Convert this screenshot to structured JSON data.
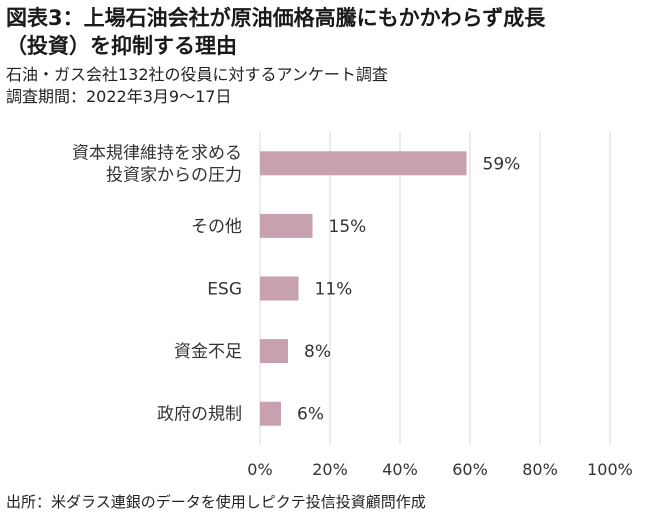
{
  "header": {
    "title_line1": "図表3：上場石油会社が原油価格高騰にもかかわらず成長",
    "title_line2": "（投資）を抑制する理由",
    "subtitle_line1": "石油・ガス会社132社の役員に対するアンケート調査",
    "subtitle_line2": "調査期間：2022年3月9～17日"
  },
  "source": "出所：米ダラス連銀のデータを使用しピクテ投信投資顧問作成",
  "chart_data": {
    "type": "bar",
    "orientation": "horizontal",
    "categories": [
      [
        "資本規律維持を求める",
        "投資家からの圧力"
      ],
      [
        "その他"
      ],
      [
        "ESG"
      ],
      [
        "資金不足"
      ],
      [
        "政府の規制"
      ]
    ],
    "values": [
      59,
      15,
      11,
      8,
      6
    ],
    "data_labels": [
      "59%",
      "15%",
      "11%",
      "8%",
      "6%"
    ],
    "xlim": [
      0,
      100
    ],
    "x_ticks": [
      0,
      20,
      40,
      60,
      80,
      100
    ],
    "x_tick_labels": [
      "0%",
      "20%",
      "40%",
      "60%",
      "80%",
      "100%"
    ],
    "grid": "vertical",
    "legend": "none",
    "colors": {
      "bar": "#c8a1b1",
      "grid": "#d9d9d9",
      "text": "#333333"
    }
  }
}
